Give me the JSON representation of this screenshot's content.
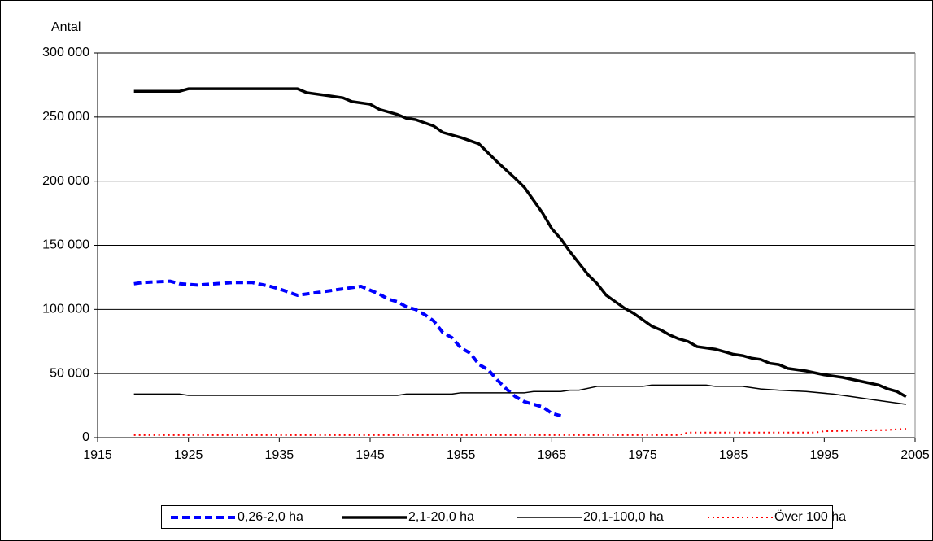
{
  "chart_data": {
    "type": "line",
    "ylabel": "Antal",
    "xlim": [
      1915,
      2005
    ],
    "xticks": [
      1915,
      1925,
      1935,
      1945,
      1955,
      1965,
      1975,
      1985,
      1995,
      2005
    ],
    "ylim": [
      0,
      300000
    ],
    "yticks": [
      0,
      {
        "value": 50000,
        "label": "50 000"
      },
      {
        "value": 100000,
        "label": "100 000"
      },
      {
        "value": 150000,
        "label": "150 000"
      },
      {
        "value": 200000,
        "label": "200 000"
      },
      {
        "value": 250000,
        "label": "250 000"
      },
      {
        "value": 300000,
        "label": "300 000"
      }
    ],
    "grid": true,
    "legend": "bottom",
    "series": [
      {
        "name": "0,26-2,0 ha",
        "color": "#0000ff",
        "style": "dashed",
        "x": [
          1919,
          1920,
          1923,
          1924,
          1926,
          1928,
          1930,
          1932,
          1934,
          1935,
          1937,
          1938,
          1940,
          1942,
          1944,
          1946,
          1947,
          1948,
          1949,
          1950,
          1951,
          1952,
          1953,
          1954,
          1955,
          1956,
          1957,
          1958,
          1959,
          1960,
          1961,
          1962,
          1963,
          1964,
          1965,
          1966
        ],
        "values": [
          120000,
          121000,
          122000,
          120000,
          119000,
          120000,
          121000,
          121000,
          118000,
          116000,
          111000,
          112000,
          114000,
          116000,
          118000,
          112000,
          108000,
          106000,
          102000,
          100000,
          96000,
          91000,
          82000,
          78000,
          70000,
          66000,
          57000,
          53000,
          45000,
          38000,
          32000,
          28000,
          26000,
          24000,
          19000,
          17000
        ]
      },
      {
        "name": "2,1-20,0 ha",
        "color": "#000000",
        "style": "thick",
        "x": [
          1919,
          1924,
          1925,
          1937,
          1938,
          1940,
          1942,
          1943,
          1945,
          1946,
          1948,
          1949,
          1950,
          1952,
          1953,
          1955,
          1957,
          1959,
          1961,
          1962,
          1963,
          1964,
          1965,
          1966,
          1967,
          1968,
          1969,
          1970,
          1971,
          1972,
          1973,
          1974,
          1975,
          1976,
          1977,
          1978,
          1979,
          1980,
          1981,
          1982,
          1983,
          1984,
          1985,
          1986,
          1987,
          1988,
          1989,
          1990,
          1991,
          1993,
          1995,
          1997,
          1999,
          2001,
          2002,
          2003,
          2004
        ],
        "values": [
          270000,
          270000,
          272000,
          272000,
          269000,
          267000,
          265000,
          262000,
          260000,
          256000,
          252000,
          249000,
          248000,
          243000,
          238000,
          234000,
          229000,
          215000,
          202000,
          195000,
          185000,
          175000,
          163000,
          155000,
          145000,
          136000,
          127000,
          120000,
          111000,
          106000,
          101000,
          97000,
          92000,
          87000,
          84000,
          80000,
          77000,
          75000,
          71000,
          70000,
          69000,
          67000,
          65000,
          64000,
          62000,
          61000,
          58000,
          57000,
          54000,
          52000,
          49000,
          47000,
          44000,
          41000,
          38000,
          36000,
          32000
        ]
      },
      {
        "name": "20,1-100,0 ha",
        "color": "#000000",
        "style": "thin",
        "x": [
          1919,
          1924,
          1925,
          1948,
          1949,
          1954,
          1955,
          1962,
          1963,
          1966,
          1967,
          1968,
          1970,
          1975,
          1976,
          1982,
          1983,
          1986,
          1987,
          1988,
          1990,
          1993,
          1996,
          1998,
          2000,
          2002,
          2004
        ],
        "values": [
          34000,
          34000,
          33000,
          33000,
          34000,
          34000,
          35000,
          35000,
          36000,
          36000,
          37000,
          37000,
          40000,
          40000,
          41000,
          41000,
          40000,
          40000,
          39000,
          38000,
          37000,
          36000,
          34000,
          32000,
          30000,
          28000,
          26000
        ]
      },
      {
        "name": "Över 100 ha",
        "color": "#ff0000",
        "style": "dotted",
        "x": [
          1919,
          1979,
          1980,
          1994,
          1995,
          2002,
          2004
        ],
        "values": [
          2000,
          2000,
          4000,
          4000,
          5000,
          6000,
          7000
        ]
      }
    ]
  }
}
